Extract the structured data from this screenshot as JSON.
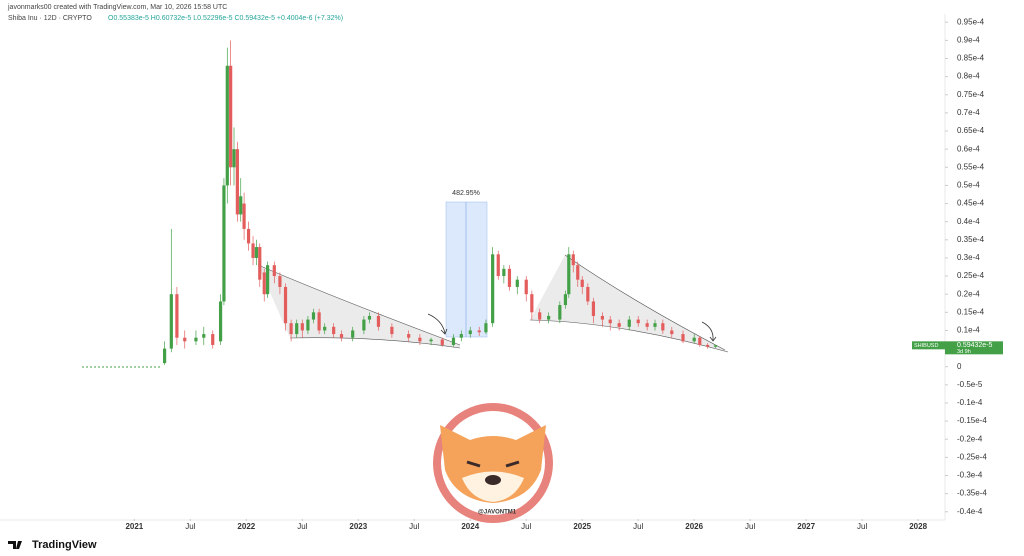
{
  "header": {
    "credit": "javonmarks00 created with TradingView.com, Mar 10, 2026 15:58 UTC",
    "symbol": "Shiba Inu · 12D · CRYPTO",
    "ohlc": "O0.55383e-5 H0.60732e-5 L0.52296e-5 C0.59432e-5 +0.4004e-6 (+7.32%)"
  },
  "chart_data": {
    "type": "candlestick",
    "up_color": "#43a047",
    "down_color": "#e35d5d",
    "grid": false,
    "xlim": [
      2019.8,
      2028.24
    ],
    "ylim": [
      -4.2e-05,
      9.7e-05
    ],
    "xticks": [
      2021,
      {
        "value": 2021.5,
        "label": "Jul"
      },
      2022,
      {
        "value": 2022.5,
        "label": "Jul"
      },
      2023,
      {
        "value": 2023.5,
        "label": "Jul"
      },
      2024,
      {
        "value": 2024.5,
        "label": "Jul"
      },
      2025,
      {
        "value": 2025.5,
        "label": "Jul"
      },
      2026,
      {
        "value": 2026.5,
        "label": "Jul"
      },
      2027,
      {
        "value": 2027.5,
        "label": "Jul"
      },
      2028
    ],
    "yticks": [
      {
        "value": 9.5e-05,
        "label": "0.95e-4"
      },
      {
        "value": 9e-05,
        "label": "0.9e-4"
      },
      {
        "value": 8.5e-05,
        "label": "0.85e-4"
      },
      {
        "value": 8e-05,
        "label": "0.8e-4"
      },
      {
        "value": 7.5e-05,
        "label": "0.75e-4"
      },
      {
        "value": 7e-05,
        "label": "0.7e-4"
      },
      {
        "value": 6.5e-05,
        "label": "0.65e-4"
      },
      {
        "value": 6e-05,
        "label": "0.6e-4"
      },
      {
        "value": 5.5e-05,
        "label": "0.55e-4"
      },
      {
        "value": 5e-05,
        "label": "0.5e-4"
      },
      {
        "value": 4.5e-05,
        "label": "0.45e-4"
      },
      {
        "value": 4e-05,
        "label": "0.4e-4"
      },
      {
        "value": 3.5e-05,
        "label": "0.35e-4"
      },
      {
        "value": 3e-05,
        "label": "0.3e-4"
      },
      {
        "value": 2.5e-05,
        "label": "0.25e-4"
      },
      {
        "value": 2e-05,
        "label": "0.2e-4"
      },
      {
        "value": 1.5e-05,
        "label": "0.15e-4"
      },
      {
        "value": 1e-05,
        "label": "0.1e-4"
      },
      0,
      {
        "value": -5e-06,
        "label": "-0.5e-5"
      },
      {
        "value": -1e-05,
        "label": "-0.1e-4"
      },
      {
        "value": -1.5e-05,
        "label": "-0.15e-4"
      },
      {
        "value": -2e-05,
        "label": "-0.2e-4"
      },
      {
        "value": -2.5e-05,
        "label": "-0.25e-4"
      },
      {
        "value": -3e-05,
        "label": "-0.3e-4"
      },
      {
        "value": -3.5e-05,
        "label": "-0.35e-4"
      },
      {
        "value": -4e-05,
        "label": "-0.4e-4"
      }
    ],
    "x": [
      2021.27,
      2021.33,
      2021.38,
      2021.45,
      2021.55,
      2021.62,
      2021.7,
      2021.77,
      2021.8,
      2021.83,
      2021.86,
      2021.89,
      2021.92,
      2021.95,
      2021.98,
      2022.02,
      2022.06,
      2022.09,
      2022.12,
      2022.16,
      2022.19,
      2022.25,
      2022.3,
      2022.35,
      2022.4,
      2022.45,
      2022.5,
      2022.55,
      2022.6,
      2022.65,
      2022.7,
      2022.78,
      2022.85,
      2022.95,
      2023.05,
      2023.1,
      2023.18,
      2023.3,
      2023.45,
      2023.55,
      2023.65,
      2023.75,
      2023.85,
      2023.92,
      2024.0,
      2024.08,
      2024.14,
      2024.2,
      2024.25,
      2024.3,
      2024.35,
      2024.42,
      2024.5,
      2024.55,
      2024.62,
      2024.7,
      2024.8,
      2024.85,
      2024.88,
      2024.92,
      2024.96,
      2025.0,
      2025.05,
      2025.1,
      2025.18,
      2025.25,
      2025.33,
      2025.42,
      2025.5,
      2025.58,
      2025.65,
      2025.72,
      2025.8,
      2025.9,
      2026.0,
      2026.05,
      2026.12,
      2026.19
    ],
    "open": [
      1e-06,
      5e-06,
      2e-05,
      8e-06,
      7e-06,
      8e-06,
      9e-06,
      7e-06,
      1.8e-05,
      5e-05,
      8.3e-05,
      5.5e-05,
      6e-05,
      4.2e-05,
      4.5e-05,
      3.8e-05,
      3.4e-05,
      3e-05,
      3.3e-05,
      2.6e-05,
      2e-05,
      2.8e-05,
      2.5e-05,
      2.2e-05,
      1.2e-05,
      9e-06,
      1.2e-05,
      1e-05,
      1.3e-05,
      1.5e-05,
      1e-05,
      1.1e-05,
      9e-06,
      8e-06,
      1e-05,
      1.3e-05,
      1.4e-05,
      1.1e-05,
      9e-06,
      8e-06,
      7e-06,
      7.5e-06,
      6e-06,
      8e-06,
      9e-06,
      1e-05,
      9.5e-06,
      1.2e-05,
      3.1e-05,
      2.5e-05,
      2.7e-05,
      2.2e-05,
      2.4e-05,
      2e-05,
      1.5e-05,
      1.3e-05,
      1.3e-05,
      1.7e-05,
      2e-05,
      3.1e-05,
      2.8e-05,
      2.4e-05,
      2.2e-05,
      1.8e-05,
      1.4e-05,
      1.3e-05,
      1.2e-05,
      1.1e-05,
      1.3e-05,
      1.2e-05,
      1.1e-05,
      1.2e-05,
      1e-05,
      9e-06,
      7e-06,
      8e-06,
      6e-06,
      5.5e-06
    ],
    "high": [
      7e-06,
      3.8e-05,
      2.2e-05,
      1e-05,
      1e-05,
      1.1e-05,
      1e-05,
      2e-05,
      5.2e-05,
      8.8e-05,
      9e-05,
      6.6e-05,
      6.2e-05,
      5.2e-05,
      4.8e-05,
      4e-05,
      3.6e-05,
      3.5e-05,
      3.4e-05,
      2.7e-05,
      2.9e-05,
      2.9e-05,
      2.6e-05,
      2.3e-05,
      1.3e-05,
      1.3e-05,
      1.3e-05,
      1.4e-05,
      1.6e-05,
      1.6e-05,
      1.2e-05,
      1.2e-05,
      1e-05,
      1.1e-05,
      1.4e-05,
      1.5e-05,
      1.5e-05,
      1.2e-05,
      1e-05,
      9e-06,
      8e-06,
      8e-06,
      9e-06,
      1e-05,
      1.1e-05,
      1.1e-05,
      1.3e-05,
      3.3e-05,
      3.2e-05,
      2.8e-05,
      2.8e-05,
      2.5e-05,
      2.5e-05,
      2.1e-05,
      1.6e-05,
      1.5e-05,
      1.8e-05,
      2.1e-05,
      3.3e-05,
      3.2e-05,
      2.9e-05,
      2.5e-05,
      2.3e-05,
      1.9e-05,
      1.5e-05,
      1.4e-05,
      1.3e-05,
      1.4e-05,
      1.4e-05,
      1.3e-05,
      1.3e-05,
      1.3e-05,
      1.1e-05,
      1e-05,
      9e-06,
      8.5e-06,
      6.5e-06,
      6.1e-06
    ],
    "low": [
      5e-07,
      4e-06,
      6e-06,
      5e-06,
      6e-06,
      6e-06,
      5e-06,
      6e-06,
      1.7e-05,
      4.5e-05,
      5e-05,
      5e-05,
      4e-05,
      4e-05,
      3.5e-05,
      3.2e-05,
      2.8e-05,
      2.8e-05,
      2.2e-05,
      1.8e-05,
      1.9e-05,
      2.3e-05,
      2e-05,
      1e-05,
      7e-06,
      8e-06,
      8e-06,
      9e-06,
      1.2e-05,
      9e-06,
      9e-06,
      8e-06,
      7e-06,
      7e-06,
      9e-06,
      1.2e-05,
      1e-05,
      8e-06,
      7e-06,
      6e-06,
      6e-06,
      5.5e-06,
      5.5e-06,
      7e-06,
      8e-06,
      8.5e-06,
      9e-06,
      1.1e-05,
      2.4e-05,
      2.3e-05,
      2.1e-05,
      2e-05,
      1.8e-05,
      1.3e-05,
      1.2e-05,
      1.2e-05,
      1.2e-05,
      1.6e-05,
      1.9e-05,
      2.6e-05,
      2.2e-05,
      2e-05,
      1.7e-05,
      1.2e-05,
      1.1e-05,
      1e-05,
      1e-05,
      1e-05,
      1.1e-05,
      1e-05,
      1e-05,
      9e-06,
      8e-06,
      6.5e-06,
      6.5e-06,
      5.5e-06,
      5e-06,
      5.2e-06
    ],
    "close": [
      5e-06,
      2e-05,
      8e-06,
      7e-06,
      8e-06,
      9e-06,
      6e-06,
      1.8e-05,
      5e-05,
      8.3e-05,
      5.5e-05,
      6e-05,
      4.2e-05,
      4.7e-05,
      3.8e-05,
      3.4e-05,
      3e-05,
      3.3e-05,
      2.4e-05,
      2e-05,
      2.8e-05,
      2.5e-05,
      2.2e-05,
      1.2e-05,
      9e-06,
      1.2e-05,
      1e-05,
      1.3e-05,
      1.5e-05,
      1e-05,
      1.1e-05,
      9e-06,
      8e-06,
      1e-05,
      1.3e-05,
      1.4e-05,
      1.1e-05,
      9e-06,
      8e-06,
      7e-06,
      7.5e-06,
      6e-06,
      8e-06,
      9e-06,
      1e-05,
      9.5e-06,
      1.2e-05,
      3.1e-05,
      2.5e-05,
      2.7e-05,
      2.2e-05,
      2.4e-05,
      2e-05,
      1.5e-05,
      1.3e-05,
      1.4e-05,
      1.7e-05,
      2e-05,
      3.1e-05,
      2.8e-05,
      2.4e-05,
      2.2e-05,
      1.8e-05,
      1.4e-05,
      1.3e-05,
      1.2e-05,
      1.1e-05,
      1.3e-05,
      1.2e-05,
      1.1e-05,
      1.2e-05,
      1e-05,
      9e-06,
      7e-06,
      8e-06,
      6e-06,
      5.5e-06,
      5.9e-06
    ],
    "annotation": "482.95%",
    "price_tag": {
      "symbol": "SHIBUSD",
      "price": "0.59432e-5",
      "countdown": "3d 9h"
    },
    "watermark": "@JAVONTM1"
  },
  "footer": {
    "brand": "TradingView"
  }
}
